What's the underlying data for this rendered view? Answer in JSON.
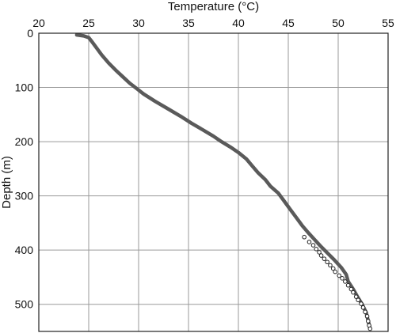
{
  "chart_data": {
    "type": "line",
    "title": "",
    "xlabel": "Temperature (°C)",
    "ylabel": "Depth (m)",
    "x_axis_position": "top",
    "y_axis_inverted": true,
    "xlim": [
      20,
      55
    ],
    "ylim": [
      0,
      550
    ],
    "xticks": [
      20,
      25,
      30,
      35,
      40,
      45,
      50,
      55
    ],
    "yticks": [
      0,
      100,
      200,
      300,
      400,
      500
    ],
    "grid": true,
    "legend": "none",
    "colors": {
      "line": "#5a5a5a",
      "markers": "#222222",
      "grid": "#9a9a9a",
      "frame": "#222222"
    },
    "series": [
      {
        "type": "line",
        "points": [
          [
            23.8,
            3
          ],
          [
            24.5,
            5
          ],
          [
            25.0,
            8
          ],
          [
            25.3,
            15
          ],
          [
            25.7,
            25
          ],
          [
            26.3,
            40
          ],
          [
            27.0,
            55
          ],
          [
            27.7,
            68
          ],
          [
            28.4,
            80
          ],
          [
            29.1,
            92
          ],
          [
            29.8,
            102
          ],
          [
            30.5,
            112
          ],
          [
            31.6,
            125
          ],
          [
            33.0,
            140
          ],
          [
            34.2,
            153
          ],
          [
            35.3,
            166
          ],
          [
            36.6,
            180
          ],
          [
            37.5,
            190
          ],
          [
            38.3,
            200
          ],
          [
            39.2,
            210
          ],
          [
            40.0,
            220
          ],
          [
            40.8,
            232
          ],
          [
            41.4,
            245
          ],
          [
            42.0,
            258
          ],
          [
            42.7,
            270
          ],
          [
            43.2,
            282
          ],
          [
            44.0,
            295
          ],
          [
            44.6,
            310
          ],
          [
            45.2,
            325
          ],
          [
            45.8,
            340
          ],
          [
            46.4,
            355
          ],
          [
            47.0,
            368
          ],
          [
            47.6,
            380
          ],
          [
            48.2,
            392
          ],
          [
            48.9,
            405
          ],
          [
            49.6,
            418
          ],
          [
            50.3,
            432
          ],
          [
            50.8,
            445
          ],
          [
            51.0,
            458
          ],
          [
            51.5,
            472
          ],
          [
            51.9,
            485
          ],
          [
            52.4,
            500
          ],
          [
            52.8,
            515
          ],
          [
            53.0,
            530
          ],
          [
            53.2,
            545
          ]
        ]
      },
      {
        "type": "scatter",
        "points": [
          [
            46.6,
            376
          ],
          [
            47.1,
            385
          ],
          [
            47.5,
            391
          ],
          [
            47.8,
            398
          ],
          [
            48.1,
            404
          ],
          [
            48.3,
            410
          ],
          [
            48.6,
            416
          ],
          [
            48.9,
            422
          ],
          [
            49.2,
            428
          ],
          [
            49.5,
            434
          ],
          [
            49.7,
            440
          ],
          [
            50.1,
            447
          ],
          [
            50.4,
            452
          ],
          [
            50.7,
            458
          ],
          [
            51.0,
            465
          ],
          [
            51.3,
            472
          ],
          [
            51.5,
            478
          ],
          [
            51.8,
            486
          ],
          [
            52.0,
            492
          ],
          [
            52.3,
            499
          ],
          [
            52.5,
            506
          ],
          [
            52.7,
            514
          ],
          [
            52.9,
            522
          ],
          [
            53.0,
            531
          ],
          [
            53.1,
            539
          ],
          [
            53.2,
            545
          ]
        ]
      }
    ]
  }
}
